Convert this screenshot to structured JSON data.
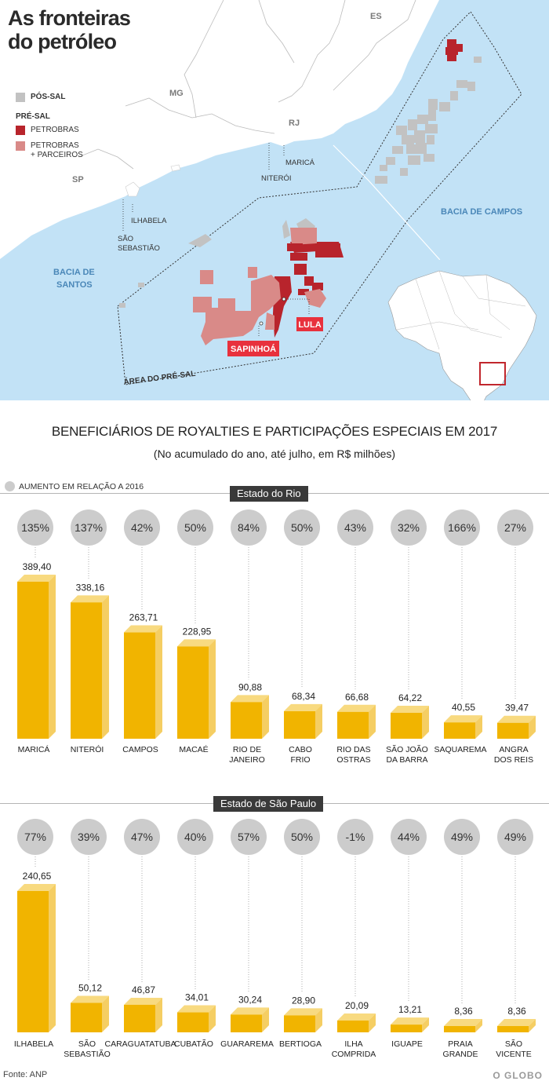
{
  "title_line1": "As fronteiras",
  "title_line2": "do petróleo",
  "map": {
    "legend": {
      "pos_sal": "PÓS-SAL",
      "pre_sal": "PRÉ-SAL",
      "petrobras": "PETROBRAS",
      "parceiros_line1": "PETROBRAS",
      "parceiros_line2": "+ PARCEIROS"
    },
    "colors": {
      "sea": "#c2e2f6",
      "land": "#ffffff",
      "pos_sal": "#c2c2c2",
      "petrobras": "#b8242c",
      "parceiros": "#d98a88",
      "label_box": "#e8313d"
    },
    "labels": {
      "es": "ES",
      "mg": "MG",
      "rj": "RJ",
      "sp": "SP",
      "marica": "MARICÁ",
      "niteroi": "NITERÓI",
      "ilhabela": "ILHABELA",
      "sao_sebastiao_1": "SÃO",
      "sao_sebastiao_2": "SEBASTIÃO",
      "bacia_santos_1": "BACIA DE",
      "bacia_santos_2": "SANTOS",
      "bacia_campos": "BACIA DE CAMPOS",
      "area_pre_sal": "ÁREA DO PRÉ-SAL",
      "lula": "LULA",
      "sapinhoa": "SAPINHOÁ"
    }
  },
  "chart_title": "BENEFICIÁRIOS DE ROYALTIES E PARTICIPAÇÕES ESPECIAIS EM 2017",
  "chart_subtitle": "(No acumulado do ano, até  julho, em R$ milhões)",
  "note": "AUMENTO EM RELAÇÃO A 2016",
  "source": "Fonte: ANP",
  "brand": "O GLOBO",
  "chart_data": [
    {
      "type": "bar",
      "title": "Estado do Rio",
      "categories": [
        "MARICÁ",
        "NITERÓI",
        "CAMPOS",
        "MACAÉ",
        "RIO DE JANEIRO",
        "CABO FRIO",
        "RIO DAS OSTRAS",
        "SÃO JOÃO DA BARRA",
        "SAQUAREMA",
        "ANGRA DOS REIS"
      ],
      "category_lines": [
        [
          "MARICÁ"
        ],
        [
          "NITERÓI"
        ],
        [
          "CAMPOS"
        ],
        [
          "MACAÉ"
        ],
        [
          "RIO DE",
          "JANEIRO"
        ],
        [
          "CABO",
          "FRIO"
        ],
        [
          "RIO DAS",
          "OSTRAS"
        ],
        [
          "SÃO JOÃO",
          "DA BARRA"
        ],
        [
          "SAQUAREMA"
        ],
        [
          "ANGRA",
          "DOS REIS"
        ]
      ],
      "values": [
        389.4,
        338.16,
        263.71,
        228.95,
        90.88,
        68.34,
        66.68,
        64.22,
        40.55,
        39.47
      ],
      "value_labels": [
        "389,40",
        "338,16",
        "263,71",
        "228,95",
        "90,88",
        "68,34",
        "66,68",
        "64,22",
        "40,55",
        "39,47"
      ],
      "growth": [
        "135%",
        "137%",
        "42%",
        "50%",
        "84%",
        "50%",
        "43%",
        "32%",
        "166%",
        "27%"
      ]
    },
    {
      "type": "bar",
      "title": "Estado de São Paulo",
      "categories": [
        "ILHABELA",
        "SÃO SEBASTIÃO",
        "CARAGUATATUBA",
        "CUBATÃO",
        "GUARAREMA",
        "BERTIOGA",
        "ILHA COMPRIDA",
        "IGUAPE",
        "PRAIA GRANDE",
        "SÃO VICENTE"
      ],
      "category_lines": [
        [
          "ILHABELA"
        ],
        [
          "SÃO",
          "SEBASTIÃO"
        ],
        [
          "CARAGUATATUBA"
        ],
        [
          "CUBATÃO"
        ],
        [
          "GUARAREMA"
        ],
        [
          "BERTIOGA"
        ],
        [
          "ILHA",
          "COMPRIDA"
        ],
        [
          "IGUAPE"
        ],
        [
          "PRAIA",
          "GRANDE"
        ],
        [
          "SÃO",
          "VICENTE"
        ]
      ],
      "values": [
        240.65,
        50.12,
        46.87,
        34.01,
        30.24,
        28.9,
        20.09,
        13.21,
        8.36,
        8.36
      ],
      "value_labels": [
        "240,65",
        "50,12",
        "46,87",
        "34,01",
        "30,24",
        "28,90",
        "20,09",
        "13,21",
        "8,36",
        "8,36"
      ],
      "growth": [
        "77%",
        "39%",
        "47%",
        "40%",
        "57%",
        "50%",
        "-1%",
        "44%",
        "49%",
        "49%"
      ]
    }
  ],
  "chart_colors": {
    "bar_front": "#f1b400",
    "bar_top": "#f8da80",
    "bar_side": "#f5ce63",
    "bubble": "#cccccc"
  }
}
